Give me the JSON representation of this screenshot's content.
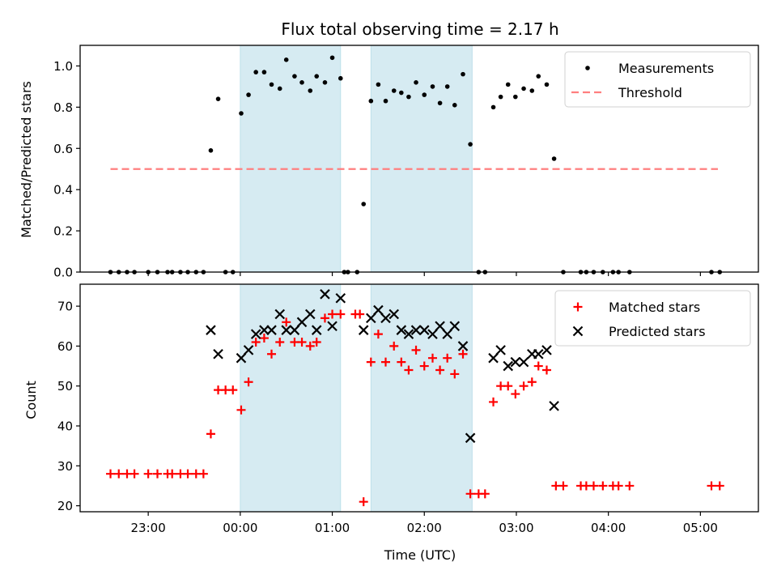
{
  "chart_data": [
    {
      "panel": "top",
      "type": "scatter",
      "title": "Flux total observing time = 2.17 h",
      "xlabel": "",
      "ylabel": "Matched/Predicted stars",
      "ylim": [
        0.0,
        1.1
      ],
      "yticks": [
        0.0,
        0.2,
        0.4,
        0.6,
        0.8,
        1.0
      ],
      "ytick_labels": [
        "0.0",
        "0.2",
        "0.4",
        "0.6",
        "0.8",
        "1.0"
      ],
      "xlim_hours": [
        -1.74,
        5.63
      ],
      "xtick_hours": [
        -1,
        0,
        1,
        2,
        3,
        4,
        5
      ],
      "xtick_labels": [
        "23:00",
        "00:00",
        "01:00",
        "02:00",
        "03:00",
        "04:00",
        "05:00"
      ],
      "x_unit": "hours relative to 00:00 UTC",
      "shaded_intervals_hours": [
        [
          0.0,
          1.09
        ],
        [
          1.42,
          2.52
        ]
      ],
      "shade_color": "#add8e6",
      "legend": {
        "placement": "top-right",
        "entries": [
          "Measurements",
          "Threshold"
        ]
      },
      "series": [
        {
          "name": "Measurements",
          "marker": "dot",
          "color": "#000000",
          "points": [
            [
              -1.41,
              0.0
            ],
            [
              -1.32,
              0.0
            ],
            [
              -1.23,
              0.0
            ],
            [
              -1.15,
              0.0
            ],
            [
              -1.0,
              0.0
            ],
            [
              -0.9,
              0.0
            ],
            [
              -0.79,
              0.0
            ],
            [
              -0.74,
              0.0
            ],
            [
              -0.65,
              0.0
            ],
            [
              -0.57,
              0.0
            ],
            [
              -0.48,
              0.0
            ],
            [
              -0.4,
              0.0
            ],
            [
              -0.32,
              0.59
            ],
            [
              -0.24,
              0.84
            ],
            [
              -0.16,
              0.0
            ],
            [
              -0.08,
              0.0
            ],
            [
              0.01,
              0.77
            ],
            [
              0.09,
              0.86
            ],
            [
              0.17,
              0.97
            ],
            [
              0.26,
              0.97
            ],
            [
              0.34,
              0.91
            ],
            [
              0.43,
              0.89
            ],
            [
              0.5,
              1.03
            ],
            [
              0.59,
              0.95
            ],
            [
              0.67,
              0.92
            ],
            [
              0.76,
              0.88
            ],
            [
              0.83,
              0.95
            ],
            [
              0.92,
              0.92
            ],
            [
              1.0,
              1.04
            ],
            [
              1.09,
              0.94
            ],
            [
              1.13,
              0.0
            ],
            [
              1.17,
              0.0
            ],
            [
              1.27,
              0.0
            ],
            [
              1.34,
              0.33
            ],
            [
              1.42,
              0.83
            ],
            [
              1.5,
              0.91
            ],
            [
              1.58,
              0.83
            ],
            [
              1.67,
              0.88
            ],
            [
              1.75,
              0.87
            ],
            [
              1.83,
              0.85
            ],
            [
              1.91,
              0.92
            ],
            [
              2.0,
              0.86
            ],
            [
              2.09,
              0.9
            ],
            [
              2.17,
              0.82
            ],
            [
              2.25,
              0.9
            ],
            [
              2.33,
              0.81
            ],
            [
              2.42,
              0.96
            ],
            [
              2.5,
              0.62
            ],
            [
              2.59,
              0.0
            ],
            [
              2.66,
              0.0
            ],
            [
              2.75,
              0.8
            ],
            [
              2.83,
              0.85
            ],
            [
              2.91,
              0.91
            ],
            [
              2.99,
              0.85
            ],
            [
              3.08,
              0.89
            ],
            [
              3.17,
              0.88
            ],
            [
              3.24,
              0.95
            ],
            [
              3.33,
              0.91
            ],
            [
              3.41,
              0.55
            ],
            [
              3.51,
              0.0
            ],
            [
              3.7,
              0.0
            ],
            [
              3.76,
              0.0
            ],
            [
              3.84,
              0.0
            ],
            [
              3.94,
              0.0
            ],
            [
              4.05,
              0.0
            ],
            [
              4.11,
              0.0
            ],
            [
              4.23,
              0.0
            ],
            [
              5.12,
              0.0
            ],
            [
              5.21,
              0.0
            ]
          ]
        },
        {
          "name": "Threshold",
          "type": "line",
          "style": "dashed",
          "color": "#ff7f7f",
          "y": 0.5,
          "x_range_hours": [
            -1.41,
            5.19
          ]
        }
      ]
    },
    {
      "panel": "bottom",
      "type": "scatter",
      "xlabel": "Time (UTC)",
      "ylabel": "Count",
      "ylim": [
        18.5,
        75.5
      ],
      "yticks": [
        20,
        30,
        40,
        50,
        60,
        70
      ],
      "ytick_labels": [
        "20",
        "30",
        "40",
        "50",
        "60",
        "70"
      ],
      "xlim_hours": [
        -1.74,
        5.63
      ],
      "xtick_hours": [
        -1,
        0,
        1,
        2,
        3,
        4,
        5
      ],
      "xtick_labels": [
        "23:00",
        "00:00",
        "01:00",
        "02:00",
        "03:00",
        "04:00",
        "05:00"
      ],
      "shaded_intervals_hours": [
        [
          0.0,
          1.09
        ],
        [
          1.42,
          2.52
        ]
      ],
      "legend": {
        "placement": "top-right",
        "entries": [
          "Matched stars",
          "Predicted stars"
        ]
      },
      "series": [
        {
          "name": "Matched stars",
          "marker": "plus",
          "color": "#ff0000",
          "points": [
            [
              -1.41,
              28
            ],
            [
              -1.32,
              28
            ],
            [
              -1.23,
              28
            ],
            [
              -1.15,
              28
            ],
            [
              -1.0,
              28
            ],
            [
              -0.9,
              28
            ],
            [
              -0.79,
              28
            ],
            [
              -0.74,
              28
            ],
            [
              -0.65,
              28
            ],
            [
              -0.57,
              28
            ],
            [
              -0.48,
              28
            ],
            [
              -0.4,
              28
            ],
            [
              -0.32,
              38
            ],
            [
              -0.24,
              49
            ],
            [
              -0.16,
              49
            ],
            [
              -0.08,
              49
            ],
            [
              0.01,
              44
            ],
            [
              0.09,
              51
            ],
            [
              0.17,
              61
            ],
            [
              0.26,
              62
            ],
            [
              0.34,
              58
            ],
            [
              0.43,
              61
            ],
            [
              0.5,
              66
            ],
            [
              0.59,
              61
            ],
            [
              0.67,
              61
            ],
            [
              0.76,
              60
            ],
            [
              0.83,
              61
            ],
            [
              0.92,
              67
            ],
            [
              1.0,
              68
            ],
            [
              1.09,
              68
            ],
            [
              1.25,
              68
            ],
            [
              1.3,
              68
            ],
            [
              1.34,
              21
            ],
            [
              1.42,
              56
            ],
            [
              1.5,
              63
            ],
            [
              1.58,
              56
            ],
            [
              1.67,
              60
            ],
            [
              1.75,
              56
            ],
            [
              1.83,
              54
            ],
            [
              1.91,
              59
            ],
            [
              2.0,
              55
            ],
            [
              2.09,
              57
            ],
            [
              2.17,
              54
            ],
            [
              2.25,
              57
            ],
            [
              2.33,
              53
            ],
            [
              2.42,
              58
            ],
            [
              2.5,
              23
            ],
            [
              2.59,
              23
            ],
            [
              2.66,
              23
            ],
            [
              2.75,
              46
            ],
            [
              2.83,
              50
            ],
            [
              2.91,
              50
            ],
            [
              2.99,
              48
            ],
            [
              3.08,
              50
            ],
            [
              3.17,
              51
            ],
            [
              3.24,
              55
            ],
            [
              3.33,
              54
            ],
            [
              3.43,
              25
            ],
            [
              3.51,
              25
            ],
            [
              3.7,
              25
            ],
            [
              3.76,
              25
            ],
            [
              3.84,
              25
            ],
            [
              3.94,
              25
            ],
            [
              4.05,
              25
            ],
            [
              4.11,
              25
            ],
            [
              4.23,
              25
            ],
            [
              5.12,
              25
            ],
            [
              5.21,
              25
            ]
          ]
        },
        {
          "name": "Predicted stars",
          "marker": "x",
          "color": "#000000",
          "points": [
            [
              -0.32,
              64
            ],
            [
              -0.24,
              58
            ],
            [
              0.01,
              57
            ],
            [
              0.09,
              59
            ],
            [
              0.17,
              63
            ],
            [
              0.26,
              64
            ],
            [
              0.34,
              64
            ],
            [
              0.43,
              68
            ],
            [
              0.5,
              64
            ],
            [
              0.59,
              64
            ],
            [
              0.67,
              66
            ],
            [
              0.76,
              68
            ],
            [
              0.83,
              64
            ],
            [
              0.92,
              73
            ],
            [
              1.0,
              65
            ],
            [
              1.09,
              72
            ],
            [
              1.34,
              64
            ],
            [
              1.42,
              67
            ],
            [
              1.5,
              69
            ],
            [
              1.58,
              67
            ],
            [
              1.67,
              68
            ],
            [
              1.75,
              64
            ],
            [
              1.83,
              63
            ],
            [
              1.91,
              64
            ],
            [
              2.0,
              64
            ],
            [
              2.09,
              63
            ],
            [
              2.17,
              65
            ],
            [
              2.25,
              63
            ],
            [
              2.33,
              65
            ],
            [
              2.42,
              60
            ],
            [
              2.5,
              37
            ],
            [
              2.75,
              57
            ],
            [
              2.83,
              59
            ],
            [
              2.91,
              55
            ],
            [
              2.99,
              56
            ],
            [
              3.08,
              56
            ],
            [
              3.17,
              58
            ],
            [
              3.24,
              58
            ],
            [
              3.33,
              59
            ],
            [
              3.41,
              45
            ]
          ]
        }
      ]
    }
  ]
}
